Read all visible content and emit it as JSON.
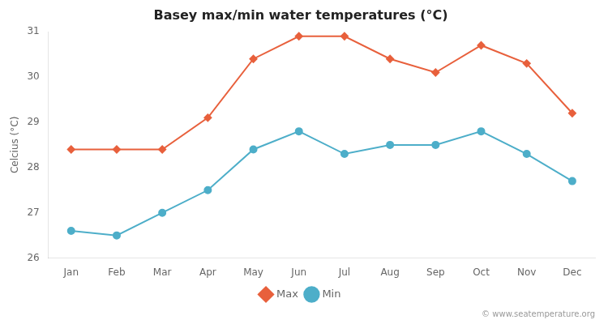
{
  "chart_data": {
    "type": "line",
    "title": "Basey max/min water temperatures (°C)",
    "ylabel": "Celcius (°C)",
    "categories": [
      "Jan",
      "Feb",
      "Mar",
      "Apr",
      "May",
      "Jun",
      "Jul",
      "Aug",
      "Sep",
      "Oct",
      "Nov",
      "Dec"
    ],
    "series": [
      {
        "name": "Max",
        "color": "#e8603c",
        "marker": "diamond",
        "values": [
          28.4,
          28.4,
          28.4,
          29.1,
          30.4,
          30.9,
          30.9,
          30.4,
          30.1,
          30.7,
          30.3,
          29.2
        ]
      },
      {
        "name": "Min",
        "color": "#4daec9",
        "marker": "circle",
        "values": [
          26.6,
          26.5,
          27.0,
          27.5,
          28.4,
          28.8,
          28.3,
          28.5,
          28.5,
          28.8,
          28.3,
          27.7
        ]
      }
    ],
    "ylim": [
      26,
      31
    ],
    "yticks": [
      26,
      27,
      28,
      29,
      30,
      31
    ],
    "grid": false,
    "legend": "bottom",
    "annotations": [
      "© www.seatemperature.org"
    ]
  }
}
